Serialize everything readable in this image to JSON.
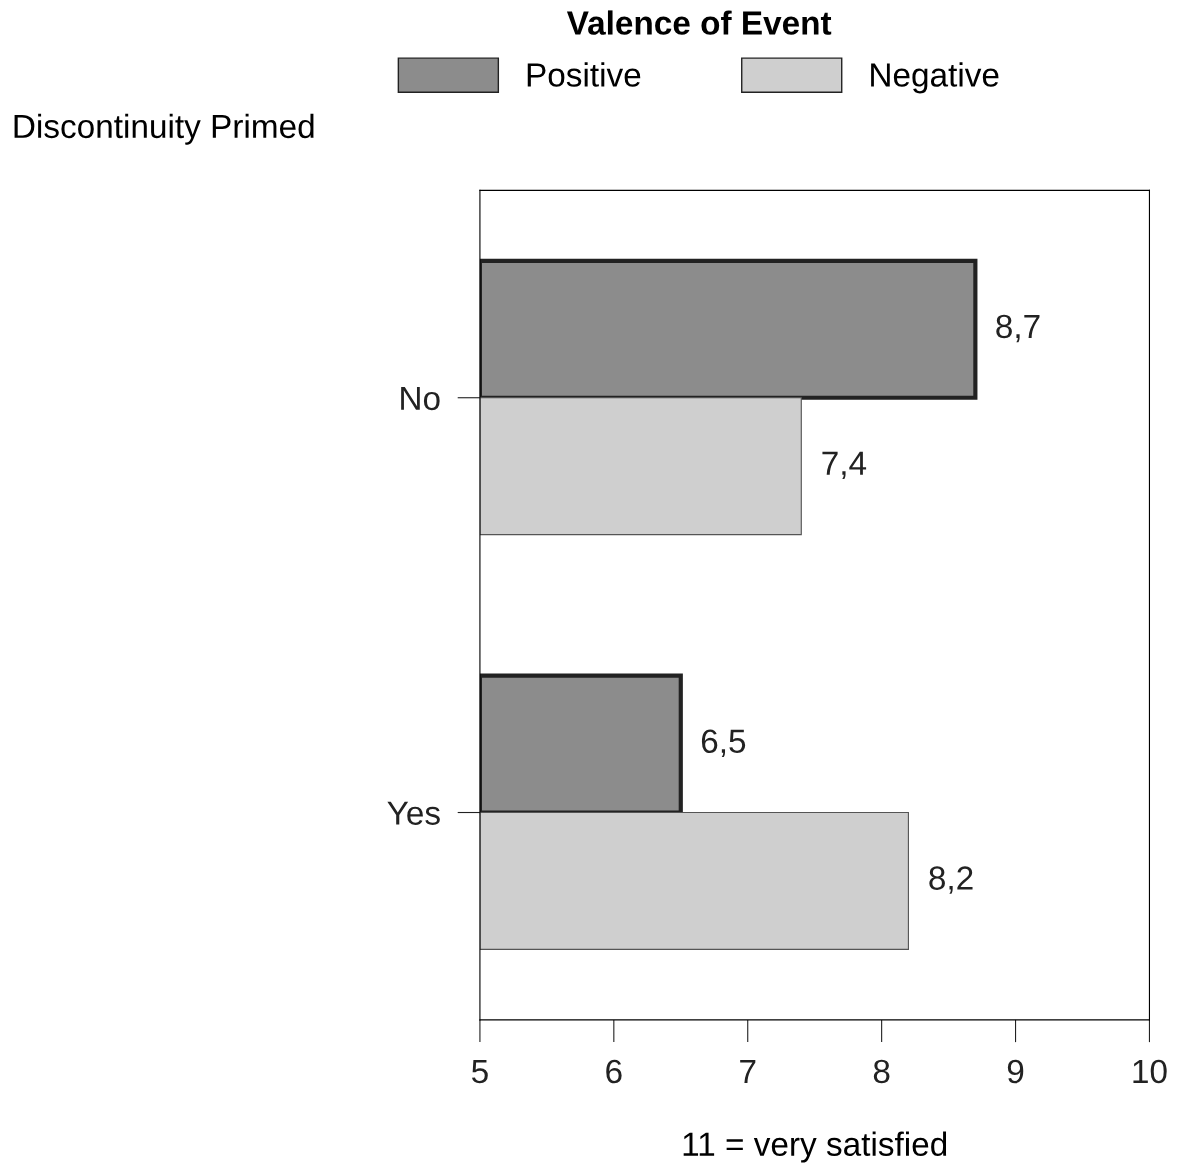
{
  "chart_data": {
    "type": "bar",
    "orientation": "horizontal",
    "categories": [
      "No",
      "Yes"
    ],
    "series": [
      {
        "name": "Positive",
        "color": "#8c8c8c",
        "values": [
          8.7,
          6.5
        ],
        "value_labels": [
          "8,7",
          "6,5"
        ]
      },
      {
        "name": "Negative",
        "color": "#cfcfcf",
        "values": [
          7.4,
          8.2
        ],
        "value_labels": [
          "7,4",
          "8,2"
        ]
      }
    ],
    "xlim": [
      5,
      10
    ],
    "xticks": [
      5,
      6,
      7,
      8,
      9,
      10
    ],
    "xlabel": "11 = very satisfied",
    "ylabel": "Discontinuity Primed",
    "legend_title": "Valence of Event",
    "legend": "top",
    "grid": false
  }
}
